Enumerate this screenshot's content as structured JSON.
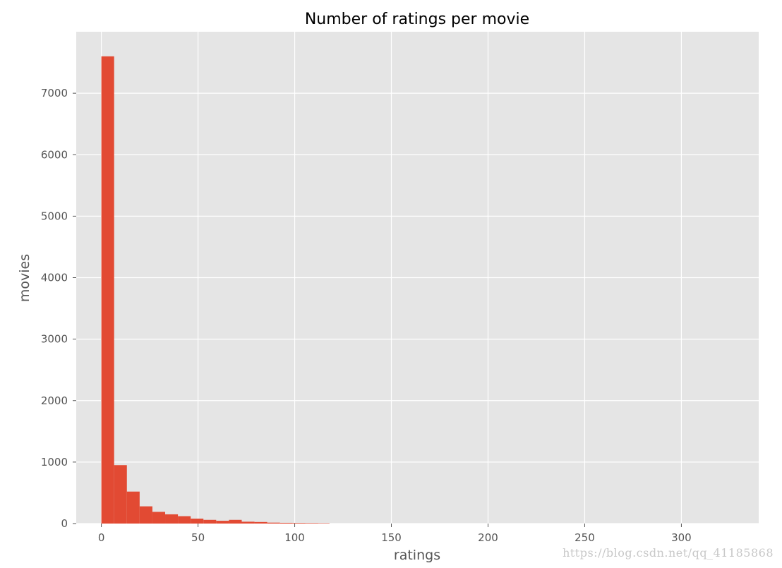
{
  "chart_data": {
    "type": "bar",
    "title": "Number of ratings per movie",
    "xlabel": "ratings",
    "ylabel": "movies",
    "xlim": [
      -13,
      340
    ],
    "ylim": [
      0,
      8000
    ],
    "xticks": [
      0,
      50,
      100,
      150,
      200,
      250,
      300
    ],
    "yticks": [
      0,
      1000,
      2000,
      3000,
      4000,
      5000,
      6000,
      7000
    ],
    "grid": true,
    "bar_color": "#E24A33",
    "background_color": "#E5E5E5",
    "grid_color": "#FFFFFF",
    "bins": [
      {
        "x0": 0.0,
        "x1": 6.6,
        "count": 7600
      },
      {
        "x0": 6.6,
        "x1": 13.2,
        "count": 950
      },
      {
        "x0": 13.2,
        "x1": 19.8,
        "count": 520
      },
      {
        "x0": 19.8,
        "x1": 26.4,
        "count": 280
      },
      {
        "x0": 26.4,
        "x1": 33.0,
        "count": 190
      },
      {
        "x0": 33.0,
        "x1": 39.6,
        "count": 150
      },
      {
        "x0": 39.6,
        "x1": 46.2,
        "count": 120
      },
      {
        "x0": 46.2,
        "x1": 52.8,
        "count": 80
      },
      {
        "x0": 52.8,
        "x1": 59.4,
        "count": 60
      },
      {
        "x0": 59.4,
        "x1": 66.0,
        "count": 45
      },
      {
        "x0": 66.0,
        "x1": 72.6,
        "count": 60
      },
      {
        "x0": 72.6,
        "x1": 79.2,
        "count": 30
      },
      {
        "x0": 79.2,
        "x1": 85.8,
        "count": 25
      },
      {
        "x0": 85.8,
        "x1": 92.4,
        "count": 15
      },
      {
        "x0": 92.4,
        "x1": 99.0,
        "count": 12
      },
      {
        "x0": 99.0,
        "x1": 105.6,
        "count": 10
      },
      {
        "x0": 105.6,
        "x1": 112.2,
        "count": 8
      },
      {
        "x0": 112.2,
        "x1": 118.0,
        "count": 6
      }
    ]
  },
  "watermark": "https://blog.csdn.net/qq_41185868"
}
